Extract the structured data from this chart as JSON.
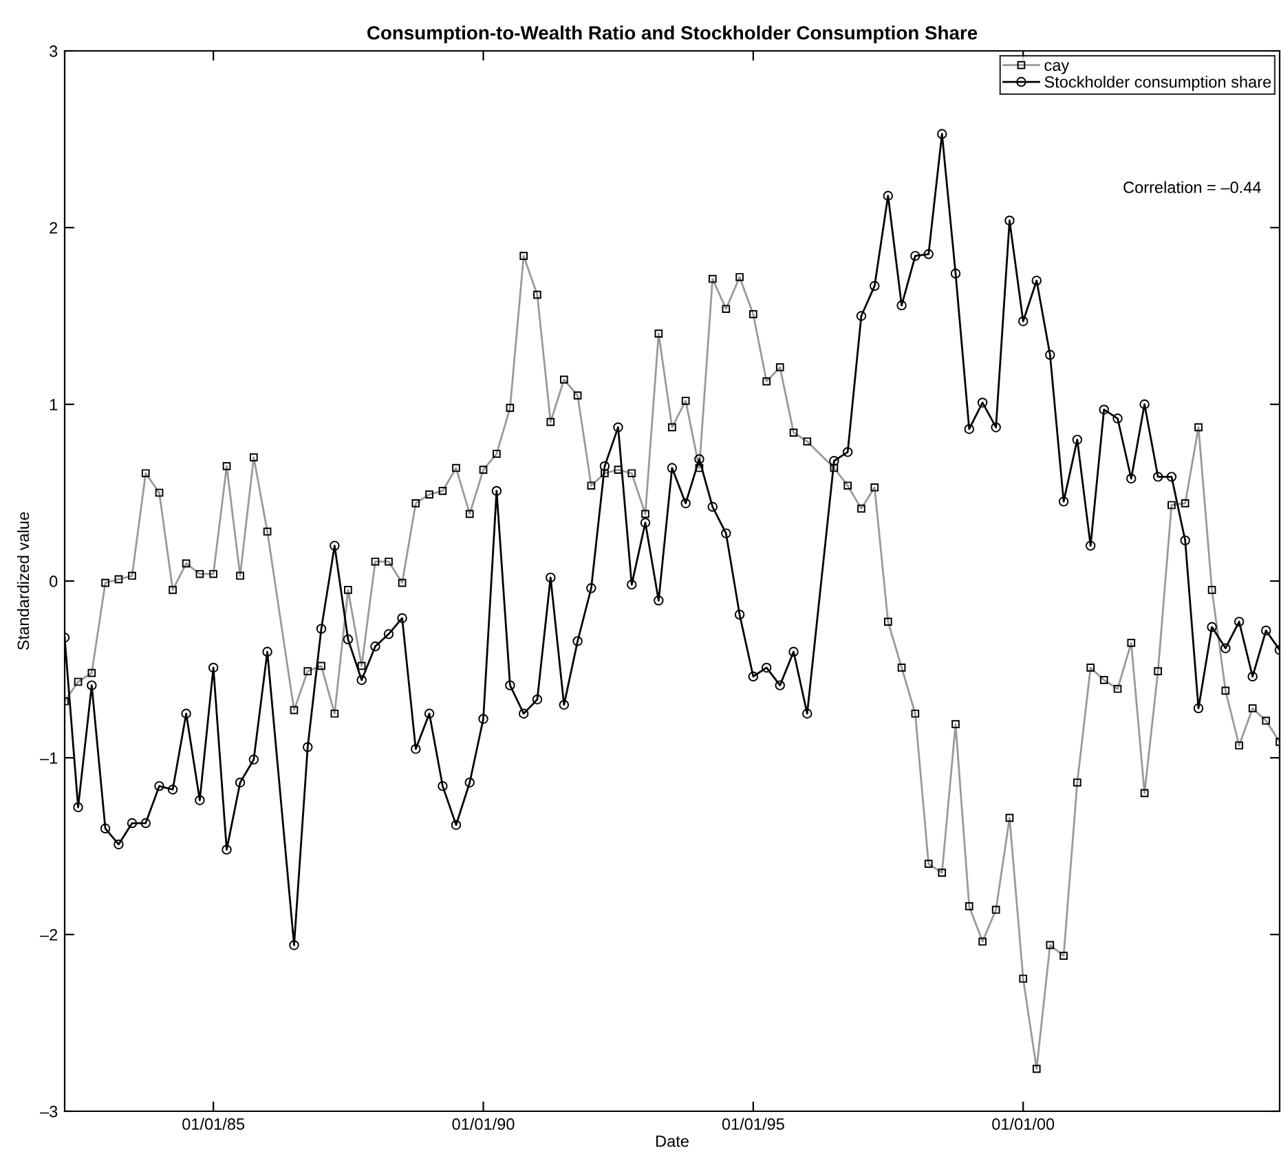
{
  "chart_data": {
    "type": "line",
    "title": "Consumption-to-Wealth Ratio and Stockholder Consumption Share",
    "xlabel": "Date",
    "ylabel": "Standardized value",
    "x": [
      "1982-04",
      "1982-07",
      "1982-10",
      "1983-01",
      "1983-04",
      "1983-07",
      "1983-10",
      "1984-01",
      "1984-04",
      "1984-07",
      "1984-10",
      "1985-01",
      "1985-04",
      "1985-07",
      "1985-10",
      "1986-01",
      "1986-07",
      "1986-10",
      "1987-01",
      "1987-04",
      "1987-07",
      "1987-10",
      "1988-01",
      "1988-04",
      "1988-07",
      "1988-10",
      "1989-01",
      "1989-04",
      "1989-07",
      "1989-10",
      "1990-01",
      "1990-04",
      "1990-07",
      "1990-10",
      "1991-01",
      "1991-04",
      "1991-07",
      "1991-10",
      "1992-01",
      "1992-04",
      "1992-07",
      "1992-10",
      "1993-01",
      "1993-04",
      "1993-07",
      "1993-10",
      "1994-01",
      "1994-04",
      "1994-07",
      "1994-10",
      "1995-01",
      "1995-04",
      "1995-07",
      "1995-10",
      "1996-01",
      "1996-07",
      "1996-10",
      "1997-01",
      "1997-04",
      "1997-07",
      "1997-10",
      "1998-01",
      "1998-04",
      "1998-07",
      "1998-10",
      "1999-01",
      "1999-04",
      "1999-07",
      "1999-10",
      "2000-01",
      "2000-04",
      "2000-07",
      "2000-10",
      "2001-01",
      "2001-04",
      "2001-07",
      "2001-10",
      "2002-01",
      "2002-04",
      "2002-07",
      "2002-10",
      "2003-01",
      "2003-04",
      "2003-07",
      "2003-10",
      "2004-01",
      "2004-04",
      "2004-07",
      "2004-10"
    ],
    "series": [
      {
        "name": "cay",
        "color": "#999999",
        "marker": "square",
        "values": [
          -0.68,
          -0.57,
          -0.52,
          -0.01,
          0.01,
          0.03,
          0.61,
          0.5,
          -0.05,
          0.1,
          0.04,
          0.04,
          0.65,
          0.03,
          0.7,
          0.28,
          -0.73,
          -0.51,
          -0.48,
          -0.75,
          -0.05,
          -0.48,
          0.11,
          0.11,
          -0.01,
          0.44,
          0.49,
          0.51,
          0.64,
          0.38,
          0.63,
          0.72,
          0.98,
          1.84,
          1.62,
          0.9,
          1.14,
          1.05,
          0.54,
          0.61,
          0.63,
          0.61,
          0.38,
          1.4,
          0.87,
          1.02,
          0.64,
          1.71,
          1.54,
          1.72,
          1.51,
          1.13,
          1.21,
          0.84,
          0.79,
          0.64,
          0.54,
          0.41,
          0.53,
          -0.23,
          -0.49,
          -0.75,
          -1.6,
          -1.65,
          -0.81,
          -1.84,
          -2.04,
          -1.86,
          -1.34,
          -2.25,
          -2.76,
          -2.06,
          -2.12,
          -1.14,
          -0.49,
          -0.56,
          -0.61,
          -0.35,
          -1.2,
          -0.51,
          0.43,
          0.44,
          0.87,
          -0.05,
          -0.62,
          -0.93,
          -0.72,
          -0.79,
          -0.91
        ]
      },
      {
        "name": "Stockholder consumption share",
        "color": "#000000",
        "marker": "circle",
        "values": [
          -0.32,
          -1.28,
          -0.59,
          -1.4,
          -1.49,
          -1.37,
          -1.37,
          -1.16,
          -1.18,
          -0.75,
          -1.24,
          -0.49,
          -1.52,
          -1.14,
          -1.01,
          -0.4,
          -2.06,
          -0.94,
          -0.27,
          0.2,
          -0.33,
          -0.56,
          -0.37,
          -0.3,
          -0.21,
          -0.95,
          -0.75,
          -1.16,
          -1.38,
          -1.14,
          -0.78,
          0.51,
          -0.59,
          -0.75,
          -0.67,
          0.02,
          -0.7,
          -0.34,
          -0.04,
          0.65,
          0.87,
          -0.02,
          0.33,
          -0.11,
          0.64,
          0.44,
          0.69,
          0.42,
          0.27,
          -0.19,
          -0.54,
          -0.49,
          -0.59,
          -0.4,
          -0.75,
          0.68,
          0.73,
          1.5,
          1.67,
          2.18,
          1.56,
          1.84,
          1.85,
          2.53,
          1.74,
          0.86,
          1.01,
          0.87,
          2.04,
          1.47,
          1.7,
          1.28,
          0.45,
          0.8,
          0.2,
          0.97,
          0.92,
          0.58,
          1.0,
          0.59,
          0.59,
          0.23,
          -0.72,
          -0.26,
          -0.38,
          -0.23,
          -0.54,
          -0.28,
          -0.39
        ]
      }
    ],
    "xlim": [
      "1982-04",
      "2004-10"
    ],
    "xticks": [
      {
        "value": "1985-01",
        "label": "01/01/85"
      },
      {
        "value": "1990-01",
        "label": "01/01/90"
      },
      {
        "value": "1995-01",
        "label": "01/01/95"
      },
      {
        "value": "2000-01",
        "label": "01/01/00"
      }
    ],
    "ylim": [
      -3,
      3
    ],
    "yticks": [
      {
        "value": -3,
        "label": "–3"
      },
      {
        "value": -2,
        "label": "–2"
      },
      {
        "value": -1,
        "label": "–1"
      },
      0,
      1,
      2,
      3
    ],
    "annotations": [
      "Correlation = –0.44"
    ],
    "legend": "top right",
    "grid": false,
    "line_style": "solid"
  }
}
